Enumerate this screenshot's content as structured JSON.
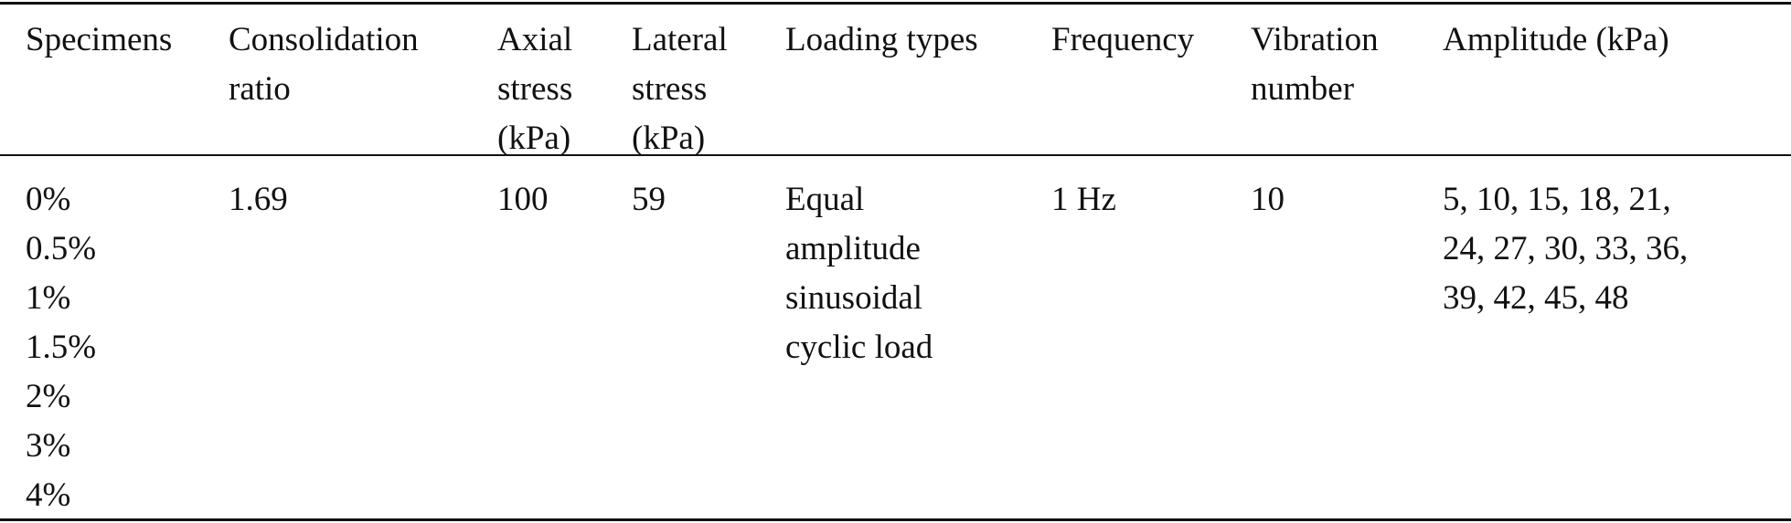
{
  "table": {
    "headers": [
      [
        "Specimens"
      ],
      [
        "Consolidation",
        "ratio"
      ],
      [
        "Axial",
        "stress",
        "(kPa)"
      ],
      [
        "Lateral",
        "stress",
        "(kPa)"
      ],
      [
        "Loading types"
      ],
      [
        "Frequency"
      ],
      [
        "Vibration",
        "number"
      ],
      [
        "Amplitude (kPa)"
      ]
    ],
    "rows": [
      [
        [
          "0%",
          "0.5%",
          "1%",
          "1.5%",
          "2%",
          "3%",
          "4%"
        ],
        [
          "1.69"
        ],
        [
          "100"
        ],
        [
          "59"
        ],
        [
          "Equal",
          "amplitude",
          "sinusoidal",
          "cyclic load"
        ],
        [
          "1 Hz"
        ],
        [
          "10"
        ],
        [
          "5, 10, 15, 18, 21,",
          "24, 27, 30, 33, 36,",
          "39, 42, 45, 48"
        ]
      ]
    ]
  }
}
